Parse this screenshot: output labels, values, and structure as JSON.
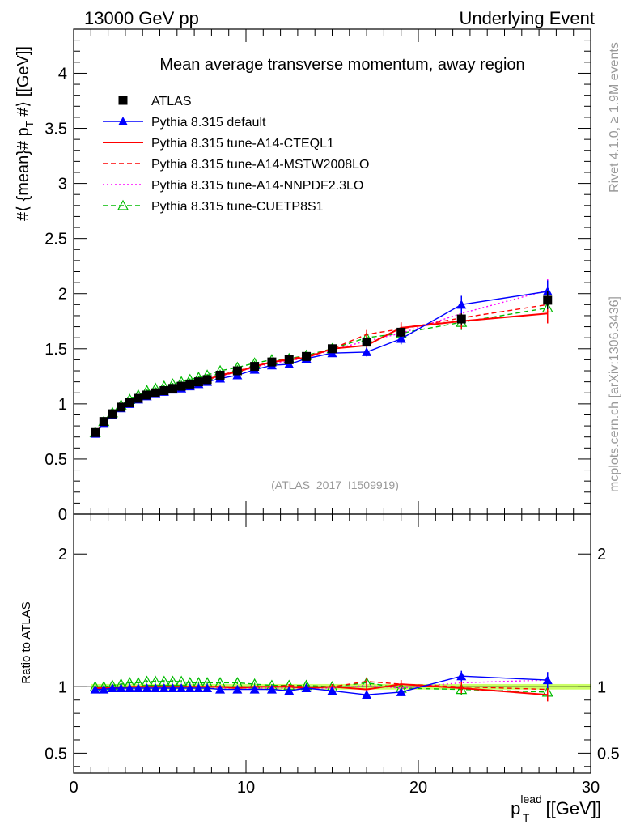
{
  "header": {
    "left": "13000 GeV pp",
    "right": "Underlying Event"
  },
  "side": {
    "rivet": "Rivet 4.1.0, ≥ 1.9M events",
    "mcplots": "mcplots.cern.ch [arXiv:1306.3436]"
  },
  "chart_data": [
    {
      "type": "line",
      "panel": "main",
      "title": "Mean average transverse momentum, away region",
      "ylabel": "#⟨ {mean}# p_T #⟩ [[GeV]]",
      "ylabel_parts": {
        "main": "#⟨ {mean}# p",
        "sub": "T",
        "rest": " #⟩ [[GeV]]"
      },
      "watermark": "(ATLAS_2017_I1509919)",
      "xlim": [
        0,
        30
      ],
      "ylim": [
        0,
        4.4
      ],
      "y_ticks": [
        0,
        0.5,
        1,
        1.5,
        2,
        2.5,
        3,
        3.5,
        4
      ],
      "y_tick_labels": [
        "0",
        "0.5",
        "1",
        "1.5",
        "2",
        "2.5",
        "3",
        "3.5",
        "4"
      ],
      "x": [
        1.25,
        1.75,
        2.25,
        2.75,
        3.25,
        3.75,
        4.25,
        4.75,
        5.25,
        5.75,
        6.25,
        6.75,
        7.25,
        7.75,
        8.5,
        9.5,
        10.5,
        11.5,
        12.5,
        13.5,
        15,
        17,
        19,
        22.5,
        27.5
      ],
      "series": [
        {
          "name": "ATLAS",
          "color": "#000000",
          "style": "data",
          "values": [
            0.74,
            0.84,
            0.91,
            0.97,
            1.01,
            1.05,
            1.08,
            1.1,
            1.12,
            1.14,
            1.16,
            1.18,
            1.2,
            1.22,
            1.26,
            1.3,
            1.34,
            1.38,
            1.4,
            1.43,
            1.5,
            1.56,
            1.65,
            1.77,
            1.94
          ],
          "errors": [
            0.01,
            0.01,
            0.01,
            0.01,
            0.01,
            0.01,
            0.01,
            0.01,
            0.01,
            0.01,
            0.01,
            0.01,
            0.01,
            0.01,
            0.01,
            0.01,
            0.01,
            0.01,
            0.01,
            0.02,
            0.02,
            0.03,
            0.04,
            0.05,
            0.08
          ]
        },
        {
          "name": "Pythia 8.315 default",
          "color": "#0000ff",
          "style": "solid-tri",
          "values": [
            0.73,
            0.82,
            0.9,
            0.96,
            1.0,
            1.04,
            1.07,
            1.09,
            1.11,
            1.13,
            1.14,
            1.16,
            1.18,
            1.2,
            1.23,
            1.26,
            1.31,
            1.35,
            1.36,
            1.41,
            1.46,
            1.47,
            1.59,
            1.9,
            2.02
          ],
          "errors": [
            0.01,
            0.01,
            0.01,
            0.01,
            0.01,
            0.01,
            0.01,
            0.01,
            0.01,
            0.01,
            0.01,
            0.01,
            0.01,
            0.01,
            0.01,
            0.02,
            0.02,
            0.02,
            0.02,
            0.02,
            0.03,
            0.04,
            0.05,
            0.08,
            0.1
          ]
        },
        {
          "name": "Pythia 8.315 tune-A14-CTEQL1",
          "color": "#ff0000",
          "style": "solid",
          "values": [
            0.73,
            0.83,
            0.9,
            0.96,
            1.01,
            1.05,
            1.08,
            1.1,
            1.12,
            1.14,
            1.16,
            1.18,
            1.2,
            1.22,
            1.26,
            1.29,
            1.34,
            1.38,
            1.4,
            1.42,
            1.5,
            1.53,
            1.69,
            1.75,
            1.82
          ],
          "errors": [
            0.01,
            0.01,
            0.01,
            0.01,
            0.01,
            0.01,
            0.01,
            0.01,
            0.01,
            0.01,
            0.01,
            0.01,
            0.01,
            0.01,
            0.01,
            0.02,
            0.02,
            0.02,
            0.02,
            0.02,
            0.03,
            0.04,
            0.05,
            0.07,
            0.09
          ]
        },
        {
          "name": "Pythia 8.315 tune-A14-MSTW2008LO",
          "color": "#ff0000",
          "style": "dashed",
          "values": [
            0.73,
            0.83,
            0.9,
            0.96,
            1.01,
            1.05,
            1.08,
            1.1,
            1.12,
            1.14,
            1.16,
            1.18,
            1.2,
            1.22,
            1.26,
            1.3,
            1.34,
            1.38,
            1.41,
            1.43,
            1.5,
            1.63,
            1.68,
            1.78,
            1.9
          ],
          "errors": [
            0.01,
            0.01,
            0.01,
            0.01,
            0.01,
            0.01,
            0.01,
            0.01,
            0.01,
            0.01,
            0.01,
            0.01,
            0.01,
            0.01,
            0.01,
            0.02,
            0.02,
            0.02,
            0.02,
            0.02,
            0.03,
            0.04,
            0.05,
            0.07,
            0.09
          ]
        },
        {
          "name": "Pythia 8.315 tune-A14-NNPDF2.3LO",
          "color": "#ff00ff",
          "style": "dotted",
          "values": [
            0.73,
            0.83,
            0.9,
            0.96,
            1.01,
            1.05,
            1.08,
            1.1,
            1.12,
            1.14,
            1.16,
            1.18,
            1.2,
            1.22,
            1.25,
            1.29,
            1.33,
            1.37,
            1.39,
            1.42,
            1.49,
            1.57,
            1.64,
            1.82,
            2.03
          ],
          "errors": [
            0.01,
            0.01,
            0.01,
            0.01,
            0.01,
            0.01,
            0.01,
            0.01,
            0.01,
            0.01,
            0.01,
            0.01,
            0.01,
            0.01,
            0.01,
            0.02,
            0.02,
            0.02,
            0.02,
            0.02,
            0.03,
            0.04,
            0.05,
            0.07,
            0.1
          ]
        },
        {
          "name": "Pythia 8.315 tune-CUETP8S1",
          "color": "#00bb00",
          "style": "dashed-opentri",
          "values": [
            0.74,
            0.84,
            0.92,
            0.99,
            1.04,
            1.08,
            1.12,
            1.14,
            1.16,
            1.18,
            1.2,
            1.22,
            1.24,
            1.26,
            1.3,
            1.33,
            1.37,
            1.4,
            1.41,
            1.44,
            1.5,
            1.6,
            1.64,
            1.74,
            1.87
          ],
          "errors": [
            0.01,
            0.01,
            0.01,
            0.01,
            0.01,
            0.01,
            0.01,
            0.01,
            0.01,
            0.01,
            0.01,
            0.01,
            0.01,
            0.01,
            0.01,
            0.02,
            0.02,
            0.02,
            0.02,
            0.02,
            0.03,
            0.04,
            0.05,
            0.07,
            0.09
          ]
        }
      ]
    },
    {
      "type": "line",
      "panel": "ratio",
      "ylabel": "Ratio to ATLAS",
      "xlabel": "p_T^lead [[GeV]]",
      "xlabel_parts": {
        "main": "p",
        "sub": "T",
        "sup": "lead",
        "rest": " [[GeV]]"
      },
      "xlim": [
        0,
        30
      ],
      "ylim": [
        0.35,
        2.3
      ],
      "x_ticks": [
        0,
        10,
        20,
        30
      ],
      "x_tick_labels": [
        "0",
        "10",
        "20",
        "30"
      ],
      "y_ticks": [
        0.5,
        1,
        2
      ],
      "y_tick_labels": [
        "0.5",
        "1",
        "2"
      ],
      "band_color": "#ccff66",
      "x": [
        1.25,
        1.75,
        2.25,
        2.75,
        3.25,
        3.75,
        4.25,
        4.75,
        5.25,
        5.75,
        6.25,
        6.75,
        7.25,
        7.75,
        8.5,
        9.5,
        10.5,
        11.5,
        12.5,
        13.5,
        15,
        17,
        19,
        22.5,
        27.5
      ],
      "series": [
        {
          "name": "Pythia 8.315 default",
          "color": "#0000ff",
          "style": "solid-tri",
          "values": [
            0.98,
            0.98,
            0.99,
            0.99,
            0.99,
            0.99,
            0.99,
            0.99,
            0.99,
            0.99,
            0.99,
            0.99,
            0.99,
            0.99,
            0.98,
            0.98,
            0.98,
            0.98,
            0.97,
            0.99,
            0.97,
            0.94,
            0.96,
            1.08,
            1.05
          ],
          "errors": [
            0.01,
            0.01,
            0.01,
            0.01,
            0.01,
            0.01,
            0.01,
            0.01,
            0.01,
            0.01,
            0.01,
            0.01,
            0.01,
            0.01,
            0.01,
            0.01,
            0.01,
            0.01,
            0.01,
            0.02,
            0.02,
            0.03,
            0.03,
            0.04,
            0.06
          ]
        },
        {
          "name": "Pythia 8.315 tune-A14-CTEQL1",
          "color": "#ff0000",
          "style": "solid",
          "values": [
            0.99,
            0.99,
            0.99,
            0.99,
            1.0,
            1.0,
            1.0,
            1.0,
            1.0,
            1.0,
            1.0,
            1.0,
            1.0,
            1.0,
            1.0,
            0.99,
            1.0,
            1.0,
            1.0,
            0.99,
            1.0,
            0.98,
            1.02,
            0.99,
            0.94
          ],
          "errors": [
            0.01,
            0.01,
            0.01,
            0.01,
            0.01,
            0.01,
            0.01,
            0.01,
            0.01,
            0.01,
            0.01,
            0.01,
            0.01,
            0.01,
            0.01,
            0.01,
            0.01,
            0.01,
            0.01,
            0.02,
            0.02,
            0.03,
            0.03,
            0.04,
            0.05
          ]
        },
        {
          "name": "Pythia 8.315 tune-A14-MSTW2008LO",
          "color": "#ff0000",
          "style": "dashed",
          "values": [
            0.99,
            0.99,
            0.99,
            0.99,
            1.0,
            1.0,
            1.0,
            1.0,
            1.0,
            1.0,
            1.0,
            1.0,
            1.0,
            1.0,
            1.0,
            1.0,
            1.0,
            1.0,
            1.01,
            1.0,
            1.0,
            1.04,
            1.02,
            1.0,
            0.98
          ],
          "errors": [
            0.01,
            0.01,
            0.01,
            0.01,
            0.01,
            0.01,
            0.01,
            0.01,
            0.01,
            0.01,
            0.01,
            0.01,
            0.01,
            0.01,
            0.01,
            0.01,
            0.01,
            0.01,
            0.01,
            0.02,
            0.02,
            0.03,
            0.03,
            0.04,
            0.05
          ]
        },
        {
          "name": "Pythia 8.315 tune-A14-NNPDF2.3LO",
          "color": "#ff00ff",
          "style": "dotted",
          "values": [
            0.99,
            0.99,
            0.99,
            0.99,
            1.0,
            1.0,
            1.0,
            1.0,
            1.0,
            1.0,
            1.0,
            1.0,
            1.0,
            1.0,
            0.99,
            0.99,
            0.99,
            0.99,
            0.99,
            0.99,
            0.99,
            1.01,
            0.99,
            1.03,
            1.05
          ],
          "errors": [
            0.01,
            0.01,
            0.01,
            0.01,
            0.01,
            0.01,
            0.01,
            0.01,
            0.01,
            0.01,
            0.01,
            0.01,
            0.01,
            0.01,
            0.01,
            0.01,
            0.01,
            0.01,
            0.01,
            0.02,
            0.02,
            0.03,
            0.03,
            0.04,
            0.06
          ]
        },
        {
          "name": "Pythia 8.315 tune-CUETP8S1",
          "color": "#00bb00",
          "style": "dashed-opentri",
          "values": [
            1.0,
            1.0,
            1.01,
            1.02,
            1.03,
            1.03,
            1.04,
            1.04,
            1.04,
            1.04,
            1.04,
            1.03,
            1.03,
            1.03,
            1.03,
            1.03,
            1.02,
            1.01,
            1.01,
            1.01,
            1.0,
            1.03,
            0.99,
            0.98,
            0.96
          ],
          "errors": [
            0.01,
            0.01,
            0.01,
            0.01,
            0.01,
            0.01,
            0.01,
            0.01,
            0.01,
            0.01,
            0.01,
            0.01,
            0.01,
            0.01,
            0.01,
            0.01,
            0.01,
            0.01,
            0.01,
            0.02,
            0.02,
            0.03,
            0.03,
            0.04,
            0.05
          ]
        }
      ]
    }
  ]
}
